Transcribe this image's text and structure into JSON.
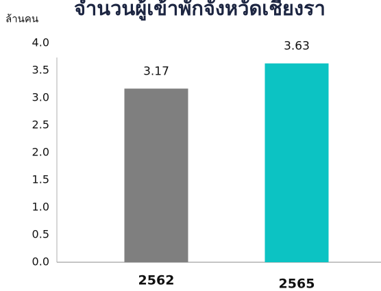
{
  "chart_data": {
    "type": "bar",
    "title": "จำนวนผู้เข้าพักจังหวัดเชียงรา",
    "y_axis_label": "ล้านคน",
    "categories": [
      "2562",
      "2565"
    ],
    "values": [
      3.17,
      3.63
    ],
    "colors": [
      "#7f7f7f",
      "#0cc3c3"
    ],
    "ylim": [
      0,
      4
    ],
    "yticks": [
      {
        "value": 0,
        "label": "0.0"
      },
      0.5,
      {
        "value": 1,
        "label": "1.0"
      },
      1.5,
      {
        "value": 2,
        "label": "2.0"
      },
      2.5,
      {
        "value": 3,
        "label": "3.0"
      },
      3.5,
      {
        "value": 4,
        "label": "4.0"
      }
    ],
    "grid": false
  }
}
